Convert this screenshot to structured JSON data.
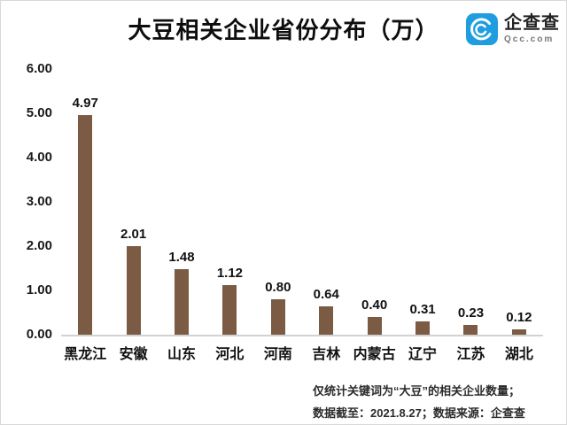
{
  "title": "大豆相关企业省份分布（万）",
  "logo": {
    "brand": "企查查",
    "domain": "Qcc.com",
    "icon": "qcc-logo-icon",
    "icon_color": "#1E9DE0"
  },
  "chart_data": {
    "type": "bar",
    "title": "大豆相关企业省份分布（万）",
    "categories": [
      "黑龙江",
      "安徽",
      "山东",
      "河北",
      "河南",
      "吉林",
      "内蒙古",
      "辽宁",
      "江苏",
      "湖北"
    ],
    "values": [
      4.97,
      2.01,
      1.48,
      1.12,
      0.8,
      0.64,
      0.4,
      0.31,
      0.23,
      0.12
    ],
    "data_labels": [
      "4.97",
      "2.01",
      "1.48",
      "1.12",
      "0.80",
      "0.64",
      "0.40",
      "0.31",
      "0.23",
      "0.12"
    ],
    "xlabel": "",
    "ylabel": "",
    "ylim": [
      0,
      6
    ],
    "yticks": [
      "6.00",
      "5.00",
      "4.00",
      "3.00",
      "2.00",
      "1.00",
      "0.00"
    ],
    "grid": false,
    "legend": "none",
    "bar_color": "#7B5B43",
    "axis_line_color": "#d2d2d2"
  },
  "footnote": {
    "line1": "仅统计关键词为“大豆”的相关企业数量；",
    "line2": "数据截至：2021.8.27；数据来源：企查查"
  }
}
